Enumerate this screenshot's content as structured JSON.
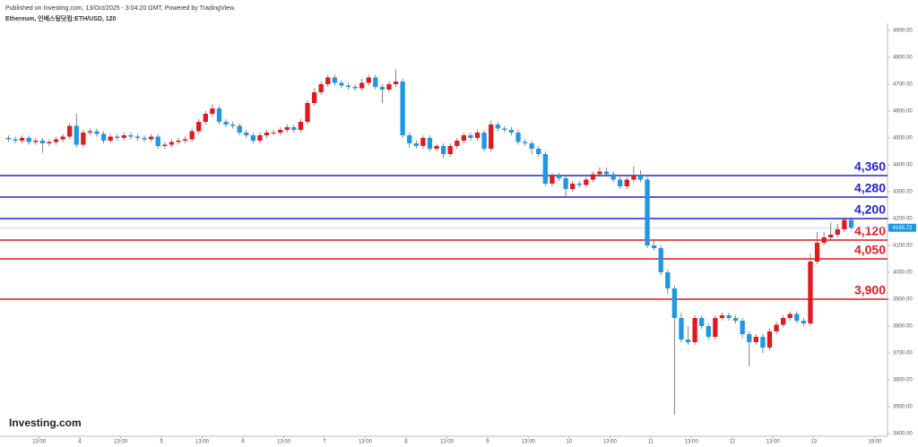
{
  "header": {
    "published": "Published on Investing.com, 13/Oct/2025 - 3:04:20 GMT, Powered by TradingView.",
    "symbol": "Ethereum, 인베스팅닷컴:ETH/USD, 120",
    "logo": "Investing.com"
  },
  "chart_data": {
    "type": "candlestick",
    "up_color": "#e3191f",
    "down_color": "#1e98e3",
    "xlim": [
      0.5,
      261.7
    ],
    "ylim": [
      3400,
      4900
    ],
    "xticks": [
      {
        "value": 12,
        "label": "13:00"
      },
      {
        "value": 24,
        "label": "4"
      },
      {
        "value": 36,
        "label": "13:00"
      },
      {
        "value": 48,
        "label": "5"
      },
      {
        "value": 60,
        "label": "13:00"
      },
      {
        "value": 72,
        "label": "6"
      },
      {
        "value": 84,
        "label": "13:00"
      },
      {
        "value": 96,
        "label": "7"
      },
      {
        "value": 108,
        "label": "13:00"
      },
      {
        "value": 120,
        "label": "8"
      },
      {
        "value": 132,
        "label": "13:00"
      },
      {
        "value": 144,
        "label": "9"
      },
      {
        "value": 156,
        "label": "13:00"
      },
      {
        "value": 168,
        "label": "10"
      },
      {
        "value": 180,
        "label": "13:00"
      },
      {
        "value": 192,
        "label": "11"
      },
      {
        "value": 204,
        "label": "13:00"
      },
      {
        "value": 216,
        "label": "12"
      },
      {
        "value": 228,
        "label": "13:00"
      },
      {
        "value": 240,
        "label": "13"
      },
      {
        "value": 258,
        "label": "19:00"
      }
    ],
    "yticks": [
      {
        "value": 3400,
        "label": "3400.00"
      },
      {
        "value": 3500,
        "label": "3500.00"
      },
      {
        "value": 3600,
        "label": "3600.00"
      },
      {
        "value": 3700,
        "label": "3700.00"
      },
      {
        "value": 3800,
        "label": "3800.00"
      },
      {
        "value": 3900,
        "label": "3900.00"
      },
      {
        "value": 4000,
        "label": "4000.00"
      },
      {
        "value": 4100,
        "label": "4100.00"
      },
      {
        "value": 4200,
        "label": "4200.00"
      },
      {
        "value": 4300,
        "label": "4300.00"
      },
      {
        "value": 4400,
        "label": "4400.00"
      },
      {
        "value": 4500,
        "label": "4500.00"
      },
      {
        "value": 4600,
        "label": "4600.00"
      },
      {
        "value": 4700,
        "label": "4700.00"
      },
      {
        "value": 4800,
        "label": "4800.00"
      },
      {
        "value": 4900,
        "label": "4900.00"
      }
    ],
    "x": [
      3,
      5,
      7,
      9,
      11,
      13,
      15,
      17,
      19,
      21,
      23,
      25,
      27,
      29,
      31,
      33,
      35,
      37,
      39,
      41,
      43,
      45,
      47,
      49,
      51,
      53,
      55,
      57,
      59,
      61,
      63,
      65,
      67,
      69,
      71,
      73,
      75,
      77,
      79,
      81,
      83,
      85,
      87,
      89,
      91,
      93,
      95,
      97,
      99,
      101,
      103,
      105,
      107,
      109,
      111,
      113,
      115,
      117,
      119,
      121,
      123,
      125,
      127,
      129,
      131,
      133,
      135,
      137,
      139,
      141,
      143,
      145,
      147,
      149,
      151,
      153,
      155,
      157,
      159,
      161,
      163,
      165,
      167,
      169,
      171,
      173,
      175,
      177,
      179,
      181,
      183,
      185,
      187,
      189,
      191,
      193,
      195,
      197,
      199,
      201,
      203,
      205,
      207,
      209,
      211,
      213,
      215,
      217,
      219,
      221,
      223,
      225,
      227,
      229,
      231,
      233,
      235,
      237,
      239,
      241,
      243,
      245,
      247,
      249,
      251
    ],
    "open": [
      4500,
      4495,
      4490,
      4500,
      4485,
      4490,
      4480,
      4485,
      4495,
      4505,
      4545,
      4475,
      4520,
      4525,
      4515,
      4490,
      4505,
      4500,
      4510,
      4505,
      4500,
      4495,
      4505,
      4470,
      4475,
      4485,
      4490,
      4495,
      4525,
      4560,
      4590,
      4610,
      4560,
      4550,
      4545,
      4520,
      4510,
      4490,
      4510,
      4520,
      4520,
      4530,
      4540,
      4530,
      4560,
      4630,
      4670,
      4700,
      4725,
      4705,
      4695,
      4690,
      4685,
      4705,
      4725,
      4690,
      4680,
      4700,
      4710,
      4510,
      4480,
      4470,
      4500,
      4460,
      4470,
      4440,
      4470,
      4490,
      4510,
      4500,
      4520,
      4460,
      4550,
      4535,
      4530,
      4520,
      4485,
      4480,
      4460,
      4440,
      4330,
      4360,
      4350,
      4310,
      4330,
      4325,
      4345,
      4365,
      4375,
      4365,
      4345,
      4320,
      4345,
      4360,
      4345,
      4100,
      4090,
      4000,
      3940,
      3830,
      3750,
      3740,
      3830,
      3800,
      3760,
      3830,
      3840,
      3830,
      3820,
      3770,
      3740,
      3760,
      3720,
      3780,
      3805,
      3830,
      3845,
      3820,
      3810,
      4040,
      4110,
      4130,
      4140,
      4160,
      4195
    ],
    "high": [
      4510,
      4505,
      4510,
      4510,
      4500,
      4500,
      4495,
      4505,
      4515,
      4555,
      4590,
      4530,
      4535,
      4535,
      4525,
      4515,
      4515,
      4520,
      4520,
      4515,
      4510,
      4515,
      4515,
      4485,
      4495,
      4500,
      4505,
      4535,
      4570,
      4600,
      4625,
      4620,
      4570,
      4560,
      4555,
      4530,
      4520,
      4520,
      4530,
      4530,
      4540,
      4550,
      4550,
      4570,
      4640,
      4685,
      4710,
      4735,
      4735,
      4715,
      4705,
      4700,
      4720,
      4735,
      4735,
      4700,
      4710,
      4755,
      4720,
      4520,
      4490,
      4510,
      4510,
      4480,
      4480,
      4480,
      4500,
      4520,
      4520,
      4530,
      4530,
      4565,
      4560,
      4545,
      4540,
      4530,
      4495,
      4490,
      4470,
      4450,
      4370,
      4370,
      4360,
      4340,
      4340,
      4355,
      4375,
      4390,
      4390,
      4375,
      4355,
      4355,
      4395,
      4380,
      4355,
      4120,
      4100,
      4010,
      3950,
      3850,
      3800,
      3840,
      3840,
      3810,
      3840,
      3850,
      3850,
      3840,
      3830,
      3780,
      3770,
      3770,
      3790,
      3815,
      3840,
      3855,
      3855,
      3830,
      4070,
      4150,
      4150,
      4185,
      4180,
      4205,
      4205
    ],
    "low": [
      4485,
      4480,
      4480,
      4475,
      4475,
      4445,
      4470,
      4475,
      4485,
      4495,
      4465,
      4465,
      4510,
      4505,
      4480,
      4480,
      4490,
      4490,
      4495,
      4490,
      4485,
      4485,
      4460,
      4460,
      4465,
      4475,
      4480,
      4485,
      4515,
      4550,
      4580,
      4550,
      4540,
      4535,
      4510,
      4500,
      4480,
      4480,
      4500,
      4510,
      4510,
      4520,
      4520,
      4520,
      4550,
      4620,
      4660,
      4690,
      4695,
      4685,
      4680,
      4675,
      4675,
      4695,
      4680,
      4630,
      4670,
      4690,
      4500,
      4465,
      4460,
      4460,
      4450,
      4450,
      4425,
      4430,
      4460,
      4480,
      4490,
      4490,
      4450,
      4450,
      4525,
      4520,
      4510,
      4475,
      4470,
      4440,
      4430,
      4320,
      4320,
      4340,
      4280,
      4300,
      4315,
      4315,
      4335,
      4355,
      4355,
      4335,
      4310,
      4310,
      4335,
      4335,
      4090,
      4080,
      3990,
      3920,
      3470,
      3740,
      3730,
      3730,
      3790,
      3750,
      3750,
      3820,
      3820,
      3810,
      3755,
      3650,
      3730,
      3700,
      3710,
      3770,
      3795,
      3820,
      3810,
      3800,
      3800,
      4030,
      4100,
      4120,
      4130,
      4150,
      4160
    ],
    "close": [
      4495,
      4490,
      4500,
      4485,
      4490,
      4480,
      4485,
      4495,
      4505,
      4545,
      4475,
      4520,
      4525,
      4515,
      4490,
      4505,
      4500,
      4510,
      4505,
      4500,
      4495,
      4505,
      4470,
      4475,
      4485,
      4490,
      4495,
      4525,
      4560,
      4590,
      4610,
      4560,
      4550,
      4545,
      4520,
      4510,
      4490,
      4510,
      4520,
      4520,
      4530,
      4540,
      4530,
      4560,
      4630,
      4670,
      4700,
      4725,
      4705,
      4695,
      4690,
      4685,
      4705,
      4725,
      4690,
      4680,
      4700,
      4710,
      4510,
      4480,
      4470,
      4500,
      4460,
      4470,
      4440,
      4470,
      4490,
      4510,
      4500,
      4520,
      4460,
      4550,
      4535,
      4530,
      4520,
      4485,
      4480,
      4460,
      4440,
      4330,
      4360,
      4350,
      4310,
      4330,
      4325,
      4345,
      4365,
      4375,
      4365,
      4345,
      4320,
      4345,
      4360,
      4345,
      4100,
      4090,
      4000,
      3940,
      3830,
      3750,
      3740,
      3830,
      3800,
      3760,
      3830,
      3840,
      3830,
      3820,
      3770,
      3740,
      3760,
      3720,
      3780,
      3805,
      3830,
      3845,
      3820,
      3810,
      4040,
      4110,
      4130,
      4140,
      4160,
      4195,
      4165.72
    ],
    "levels": {
      "values": [
        4360,
        4280,
        4200,
        4120,
        4050,
        3900
      ],
      "value_labels": [
        "4,360",
        "4,280",
        "4,200",
        "4,120",
        "4,050",
        "3,900"
      ],
      "colors": [
        "#2323d0",
        "#2323d0",
        "#2323d0",
        "#e3191f",
        "#e3191f",
        "#e3191f"
      ]
    },
    "last_price": {
      "value": 4165.72,
      "color": "#1e98e3"
    }
  }
}
